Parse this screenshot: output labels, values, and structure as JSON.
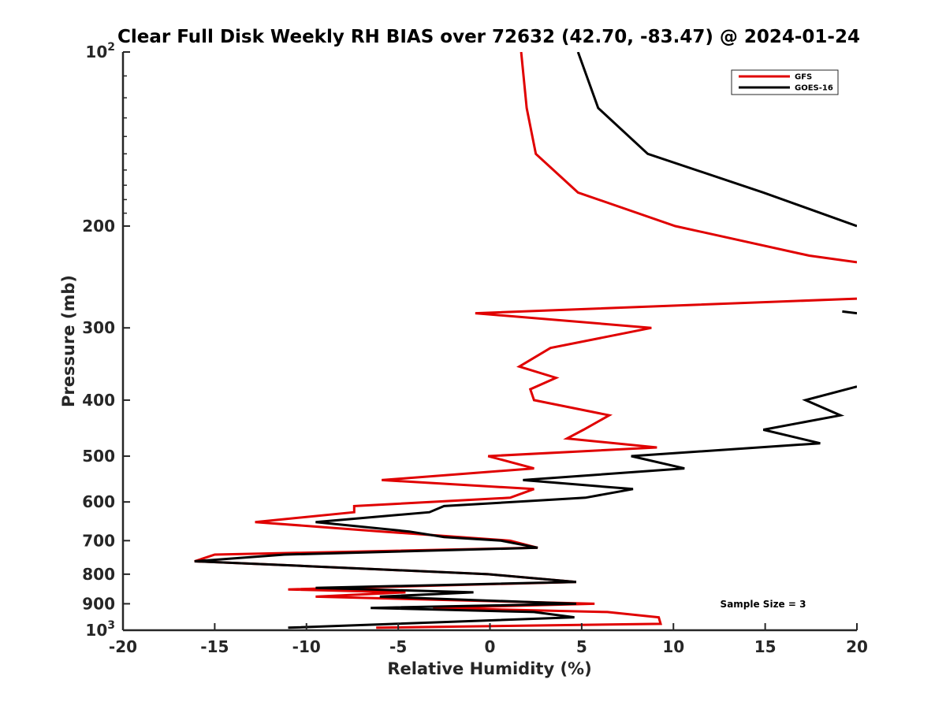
{
  "chart_data": {
    "type": "line",
    "title": "Clear Full Disk Weekly RH BIAS over 72632 (42.70, -83.47) @ 2024-01-24",
    "xlabel": "Relative Humidity (%)",
    "ylabel": "Pressure (mb)",
    "xlim": [
      -20,
      20
    ],
    "ylim": [
      1000,
      100
    ],
    "yscale": "log",
    "xticks": [
      -20,
      -15,
      -10,
      -5,
      0,
      5,
      10,
      15,
      20
    ],
    "yticks": [
      {
        "value": 100,
        "base": "10",
        "exp": "2"
      },
      {
        "value": 200,
        "label": "200"
      },
      {
        "value": 300,
        "label": "300"
      },
      {
        "value": 400,
        "label": "400"
      },
      {
        "value": 500,
        "label": "500"
      },
      {
        "value": 600,
        "label": "600"
      },
      {
        "value": 700,
        "label": "700"
      },
      {
        "value": 800,
        "label": "800"
      },
      {
        "value": 900,
        "label": "900"
      },
      {
        "value": 1000,
        "base": "10",
        "exp": "3"
      }
    ],
    "grid": false,
    "legend_position": "top-right",
    "annotation": "Sample Size = 3",
    "series": [
      {
        "name": "GFS",
        "color": "#e00000",
        "segments": [
          [
            [
              1.7,
              100
            ],
            [
              2.0,
              125
            ],
            [
              2.5,
              150
            ],
            [
              4.8,
              175
            ],
            [
              10.1,
              200
            ],
            [
              17.4,
              225
            ],
            [
              20.0,
              231
            ]
          ]
        ]
      },
      {
        "name": "GOES-16",
        "color": "#000000",
        "segments": [
          [
            [
              4.8,
              100
            ],
            [
              5.9,
              125
            ],
            [
              8.6,
              150
            ],
            [
              14.9,
              175
            ],
            [
              20.0,
              200
            ]
          ]
        ]
      },
      {
        "name": "GFS",
        "color": "#e00000",
        "segments": [
          [
            [
              20.0,
              267
            ],
            [
              -0.8,
              283
            ],
            [
              8.8,
              300
            ],
            [
              3.3,
              325
            ],
            [
              1.6,
              350
            ],
            [
              3.6,
              366
            ],
            [
              2.2,
              383
            ],
            [
              2.4,
              400
            ],
            [
              6.5,
              425
            ],
            [
              5.1,
              450
            ],
            [
              4.2,
              466
            ],
            [
              9.1,
              483
            ],
            [
              -0.1,
              500
            ],
            [
              2.4,
              525
            ],
            [
              -5.9,
              550
            ],
            [
              2.4,
              570
            ],
            [
              1.1,
              590
            ],
            [
              -7.4,
              610
            ],
            [
              -7.4,
              625
            ],
            [
              -12.8,
              650
            ],
            [
              -5.9,
              675
            ],
            [
              1.1,
              700
            ],
            [
              2.6,
              720
            ],
            [
              -15.0,
              740
            ],
            [
              -16.1,
              760
            ],
            [
              -9.9,
              775
            ],
            [
              -0.1,
              800
            ],
            [
              4.7,
              825
            ],
            [
              -11.0,
              850
            ],
            [
              -4.6,
              860
            ],
            [
              -9.5,
              875
            ],
            [
              5.7,
              900
            ],
            [
              -3.1,
              915
            ],
            [
              6.4,
              930
            ],
            [
              9.2,
              950
            ],
            [
              9.3,
              975
            ],
            [
              -6.2,
              990
            ]
          ]
        ]
      },
      {
        "name": "GOES-16",
        "color": "#000000",
        "segments": [
          [
            [
              19.2,
              281
            ],
            [
              20.0,
              283
            ]
          ],
          [
            [
              20.0,
              379
            ],
            [
              17.2,
              400
            ],
            [
              19.1,
              425
            ],
            [
              14.9,
              450
            ],
            [
              18.0,
              475
            ],
            [
              7.7,
              500
            ],
            [
              10.6,
              525
            ],
            [
              1.8,
              550
            ],
            [
              7.8,
              570
            ],
            [
              5.2,
              590
            ],
            [
              -2.5,
              610
            ],
            [
              -3.3,
              625
            ],
            [
              -9.5,
              650
            ],
            [
              -4.4,
              675
            ],
            [
              -2.5,
              690
            ],
            [
              0.6,
              700
            ],
            [
              2.6,
              720
            ],
            [
              -11.2,
              740
            ],
            [
              -16.1,
              760
            ],
            [
              -9.9,
              775
            ],
            [
              -0.1,
              800
            ],
            [
              4.7,
              825
            ],
            [
              -9.5,
              845
            ],
            [
              -0.9,
              860
            ],
            [
              -6.0,
              875
            ],
            [
              4.7,
              900
            ],
            [
              -6.5,
              915
            ],
            [
              2.4,
              930
            ],
            [
              4.6,
              950
            ],
            [
              -11.0,
              990
            ]
          ]
        ]
      }
    ],
    "legend": [
      {
        "label": "GFS",
        "color": "#e00000"
      },
      {
        "label": "GOES-16",
        "color": "#000000"
      }
    ]
  }
}
